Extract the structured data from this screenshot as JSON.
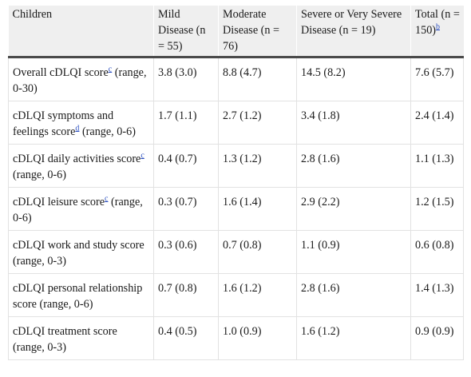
{
  "table": {
    "headers": [
      {
        "text": "Children",
        "sup": ""
      },
      {
        "text": "Mild Disease (n = 55)",
        "sup": ""
      },
      {
        "text": "Moderate Disease (n = 76)",
        "sup": ""
      },
      {
        "text": "Severe or Very Severe Disease (n = 19)",
        "sup": ""
      },
      {
        "text": "Total (n = 150)",
        "sup": "b"
      }
    ],
    "rows": [
      {
        "label_pre": "Overall cDLQI score",
        "sup": "c",
        "label_post": " (range, 0-30)",
        "mild": "3.8 (3.0)",
        "moderate": "8.8 (4.7)",
        "severe": "14.5 (8.2)",
        "total": "7.6 (5.7)"
      },
      {
        "label_pre": "cDLQI symptoms and feelings score",
        "sup": "d",
        "label_post": " (range, 0-6)",
        "mild": "1.7 (1.1)",
        "moderate": "2.7 (1.2)",
        "severe": "3.4 (1.8)",
        "total": "2.4 (1.4)"
      },
      {
        "label_pre": "cDLQI daily activities score",
        "sup": "c",
        "label_post": " (range, 0-6)",
        "mild": "0.4 (0.7)",
        "moderate": "1.3 (1.2)",
        "severe": "2.8 (1.6)",
        "total": "1.1 (1.3)"
      },
      {
        "label_pre": "cDLQI leisure score",
        "sup": "c",
        "label_post": " (range, 0-6)",
        "mild": "0.3 (0.7)",
        "moderate": "1.6 (1.4)",
        "severe": "2.9 (2.2)",
        "total": "1.2 (1.5)"
      },
      {
        "label_pre": "cDLQI work and study score (range, 0-3)",
        "sup": "",
        "label_post": "",
        "mild": "0.3 (0.6)",
        "moderate": "0.7 (0.8)",
        "severe": "1.1 (0.9)",
        "total": "0.6 (0.8)"
      },
      {
        "label_pre": "cDLQI personal relationship score (range, 0-6)",
        "sup": "",
        "label_post": "",
        "mild": "0.7 (0.8)",
        "moderate": "1.6 (1.2)",
        "severe": "2.8 (1.6)",
        "total": "1.4 (1.3)"
      },
      {
        "label_pre": "cDLQI treatment score (range, 0-3)",
        "sup": "",
        "label_post": "",
        "mild": "0.4 (0.5)",
        "moderate": "1.0 (0.9)",
        "severe": "1.6 (1.2)",
        "total": "0.9 (0.9)"
      }
    ]
  }
}
